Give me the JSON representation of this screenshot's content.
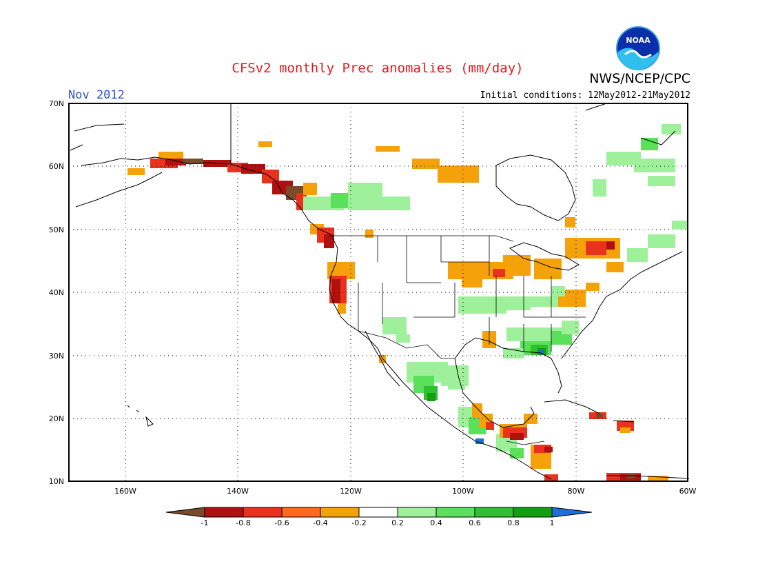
{
  "title": "CFSv2 monthly Prec anomalies (mm/day)",
  "agency": "NWS/NCEP/CPC",
  "logo_text": "NOAA",
  "month_label": "Nov 2012",
  "initial_conditions": "Initial conditions: 12May2012-21May2012",
  "map": {
    "lon_range": [
      -170,
      -60
    ],
    "lat_range": [
      10,
      70
    ],
    "lon_ticks": [
      "160W",
      "140W",
      "120W",
      "100W",
      "80W",
      "60W"
    ],
    "lat_ticks": [
      "10N",
      "20N",
      "30N",
      "40N",
      "50N",
      "60N",
      "70N"
    ],
    "grid": true
  },
  "colorbar": {
    "ticks": [
      "-1",
      "-0.8",
      "-0.6",
      "-0.4",
      "-0.2",
      "0.2",
      "0.4",
      "0.6",
      "0.8",
      "1"
    ],
    "colors": [
      "#7a4a2a",
      "#b01010",
      "#e8321e",
      "#fa6a1a",
      "#f5a20a",
      "#ffffff",
      "#9ef09a",
      "#5ae05a",
      "#30c030",
      "#10a010",
      "#1e6edc"
    ]
  }
}
